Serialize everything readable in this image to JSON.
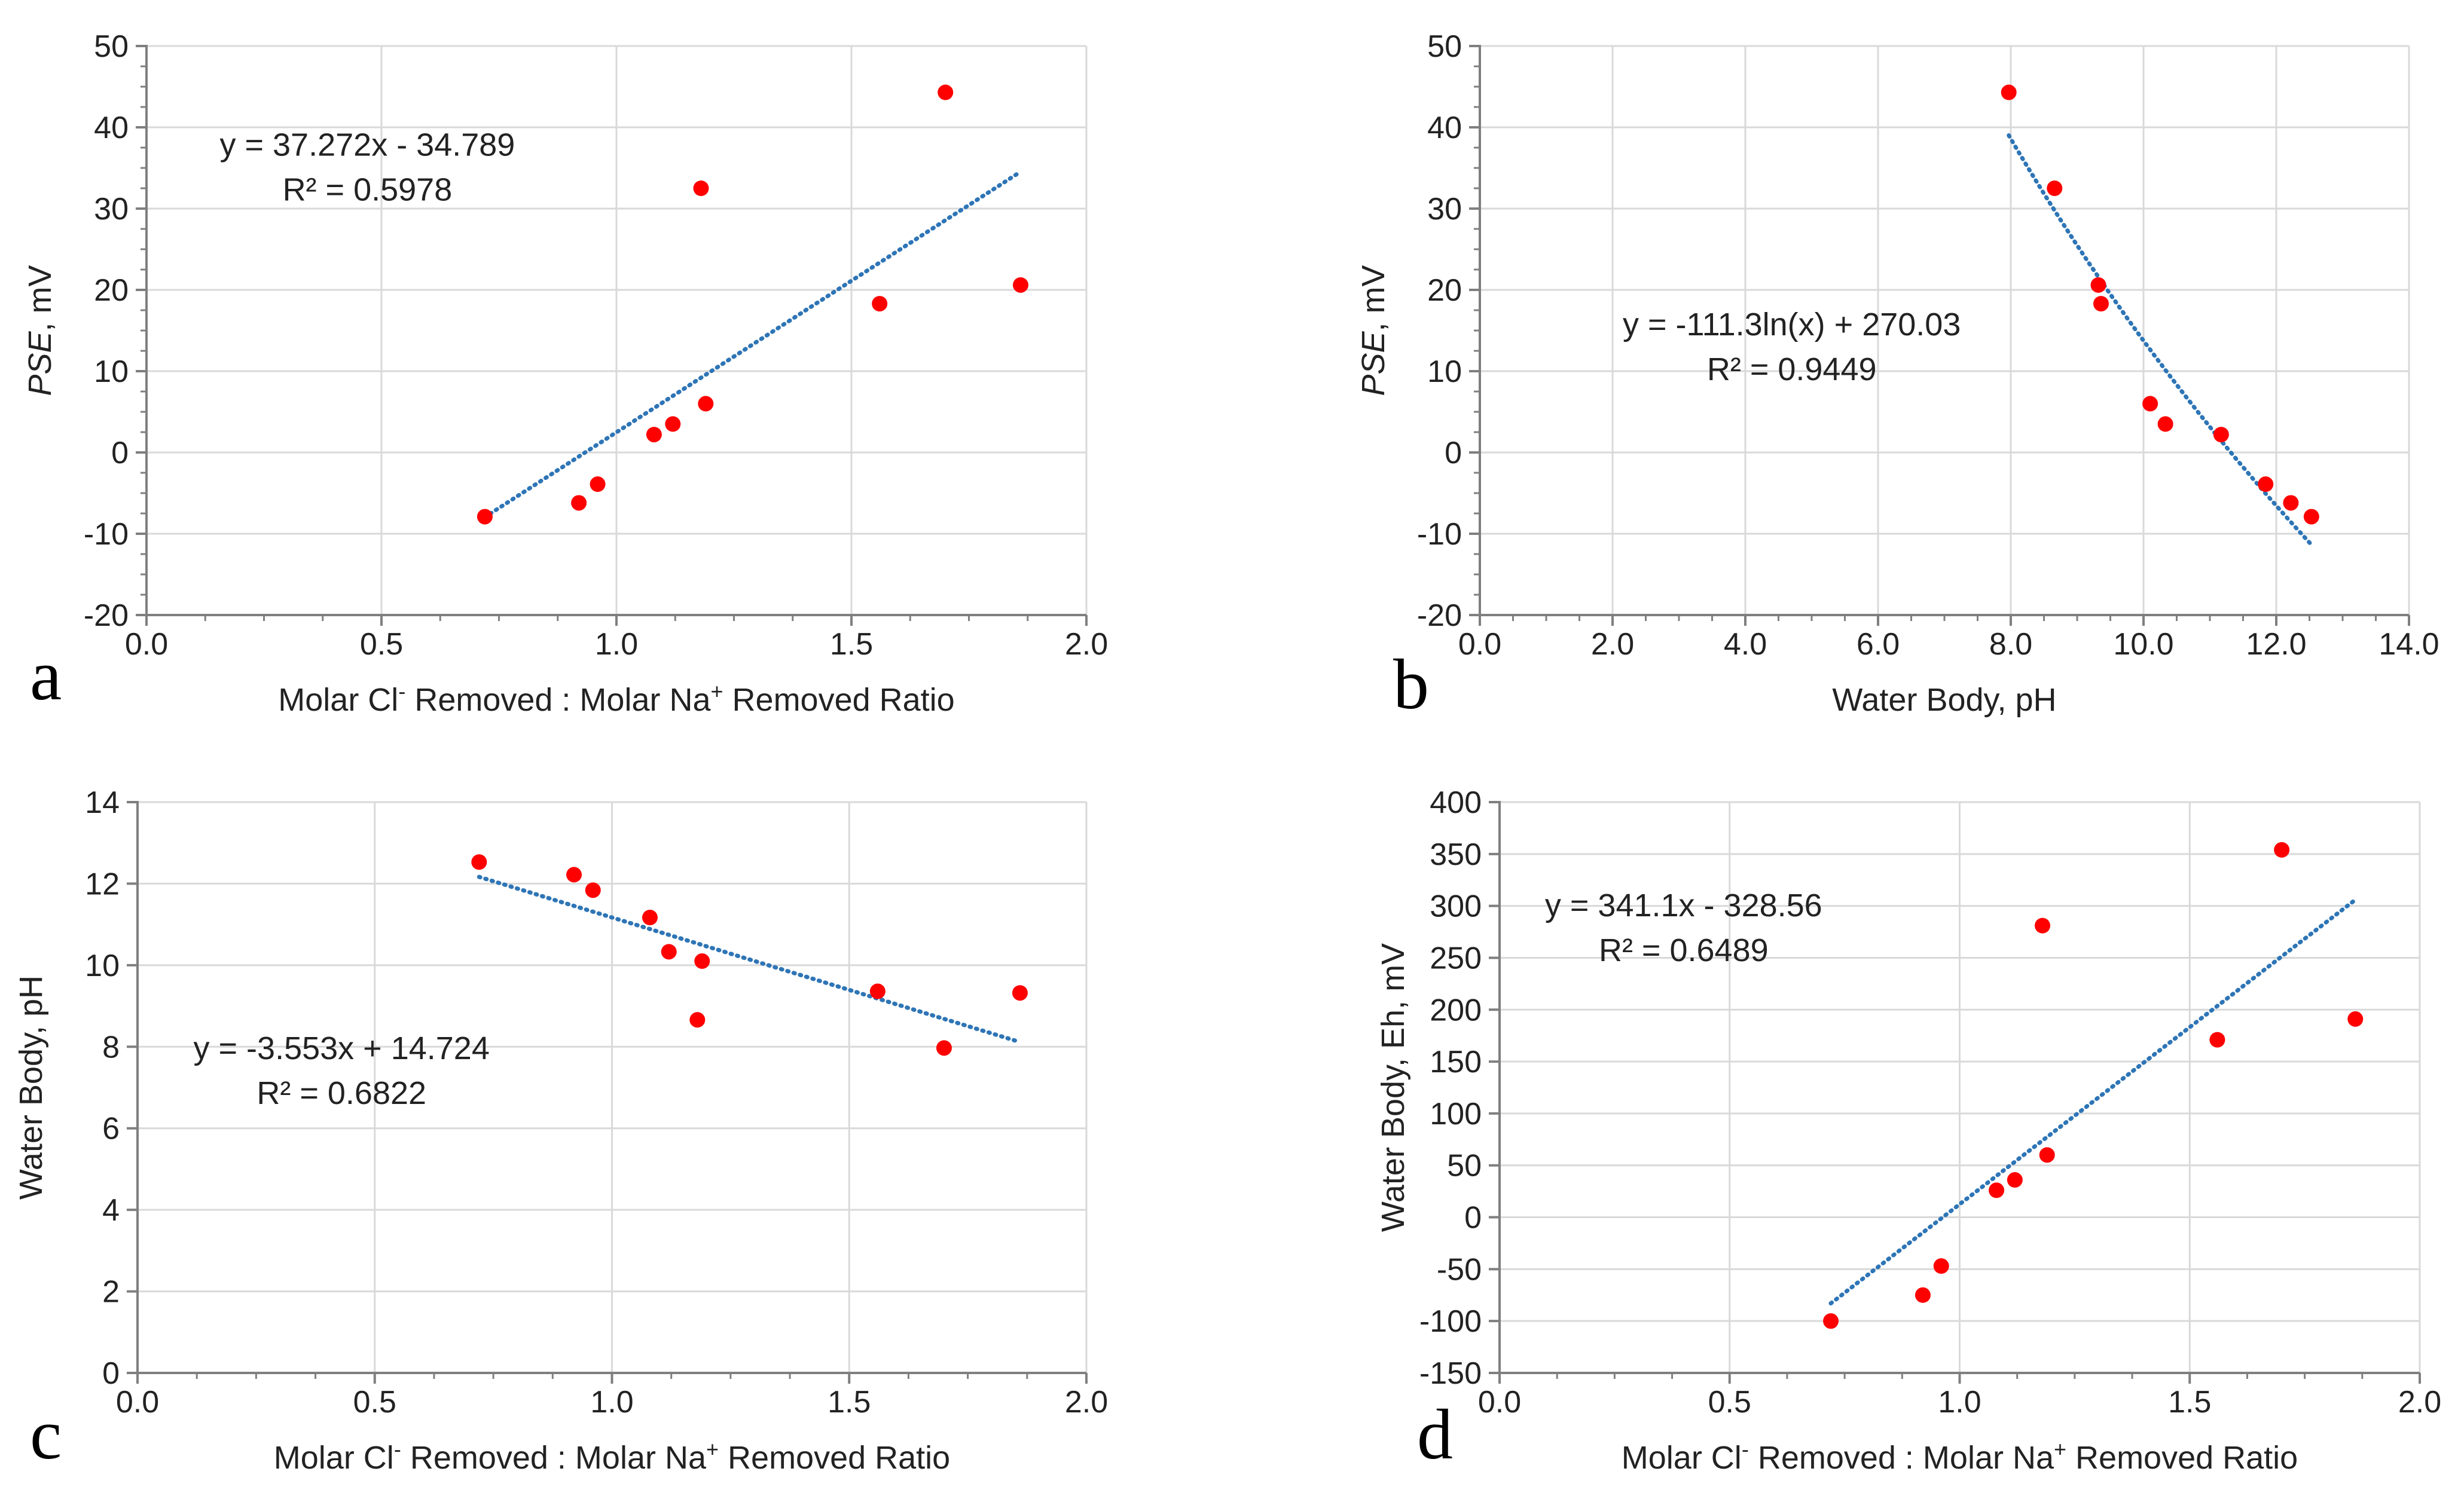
{
  "colors": {
    "point": "#ff0000",
    "trendline": "#2e75b6",
    "gridline": "#d9d9d9",
    "axis": "#7f7f7f",
    "text": "#222222"
  },
  "chart_data": [
    {
      "id": "a",
      "letter": "a",
      "type": "scatter",
      "title": "",
      "xlabel_parts": [
        "Molar Cl",
        "-",
        " Removed : Molar Na",
        "+",
        " Removed Ratio"
      ],
      "ylabel_parts": [
        {
          "text": "PSE",
          "italic": true
        },
        {
          "text": ", mV",
          "italic": false
        }
      ],
      "xlim": [
        0,
        2
      ],
      "ylim": [
        -20,
        50
      ],
      "x_major": 0.5,
      "y_major": 10,
      "x_minor_per_major": 4,
      "y_minor_per_major": 4,
      "xtick_decimals": 1,
      "ytick_decimals": 0,
      "grid": true,
      "points": [
        {
          "x": 0.72,
          "y": -7.9
        },
        {
          "x": 0.92,
          "y": -6.2
        },
        {
          "x": 0.96,
          "y": -3.9
        },
        {
          "x": 1.08,
          "y": 2.2
        },
        {
          "x": 1.12,
          "y": 3.5
        },
        {
          "x": 1.18,
          "y": 32.5
        },
        {
          "x": 1.19,
          "y": 6.0
        },
        {
          "x": 1.56,
          "y": 18.3
        },
        {
          "x": 1.7,
          "y": 44.3
        },
        {
          "x": 1.86,
          "y": 20.6
        }
      ],
      "trendline": {
        "kind": "linear",
        "a": 37.272,
        "b": -34.789,
        "xrange": [
          0.72,
          1.86
        ]
      },
      "equation": "y = 37.272x - 34.789",
      "r2": "R² = 0.5978",
      "equation_anchor": {
        "x": 0.47,
        "y": 36.5
      }
    },
    {
      "id": "b",
      "letter": "b",
      "type": "scatter",
      "title": "",
      "xlabel_parts": [
        "Water Body, pH"
      ],
      "ylabel_parts": [
        {
          "text": "PSE",
          "italic": true
        },
        {
          "text": ", mV",
          "italic": false
        }
      ],
      "xlim": [
        0,
        14
      ],
      "ylim": [
        -20,
        50
      ],
      "x_major": 2,
      "y_major": 10,
      "x_minor_per_major": 4,
      "y_minor_per_major": 4,
      "xtick_decimals": 1,
      "ytick_decimals": 0,
      "grid": true,
      "points": [
        {
          "x": 7.97,
          "y": 44.3
        },
        {
          "x": 8.66,
          "y": 32.5
        },
        {
          "x": 9.32,
          "y": 20.6
        },
        {
          "x": 9.36,
          "y": 18.3
        },
        {
          "x": 10.1,
          "y": 6.0
        },
        {
          "x": 10.33,
          "y": 3.5
        },
        {
          "x": 11.17,
          "y": 2.2
        },
        {
          "x": 11.84,
          "y": -3.9
        },
        {
          "x": 12.22,
          "y": -6.2
        },
        {
          "x": 12.53,
          "y": -7.9
        }
      ],
      "trendline": {
        "kind": "log",
        "a": -111.3,
        "b": 270.03,
        "xrange": [
          7.97,
          12.53
        ]
      },
      "equation": "y = -111.3ln(x) + 270.03",
      "r2": "R² = 0.9449",
      "equation_anchor": {
        "x": 4.7,
        "y": 14.4
      }
    },
    {
      "id": "c",
      "letter": "c",
      "type": "scatter",
      "title": "",
      "xlabel_parts": [
        "Molar Cl",
        "-",
        " Removed : Molar Na",
        "+",
        " Removed Ratio"
      ],
      "ylabel_parts": [
        {
          "text": "Water Body, pH",
          "italic": false
        }
      ],
      "xlim": [
        0,
        2
      ],
      "ylim": [
        0,
        14
      ],
      "x_major": 0.5,
      "y_major": 2,
      "x_minor_per_major": 4,
      "y_minor_per_major": 0,
      "xtick_decimals": 1,
      "ytick_decimals": 0,
      "grid": true,
      "points": [
        {
          "x": 0.72,
          "y": 12.53
        },
        {
          "x": 0.92,
          "y": 12.22
        },
        {
          "x": 0.96,
          "y": 11.84
        },
        {
          "x": 1.08,
          "y": 11.17
        },
        {
          "x": 1.12,
          "y": 10.33
        },
        {
          "x": 1.18,
          "y": 8.66
        },
        {
          "x": 1.19,
          "y": 10.1
        },
        {
          "x": 1.56,
          "y": 9.36
        },
        {
          "x": 1.7,
          "y": 7.97
        },
        {
          "x": 1.86,
          "y": 9.32
        }
      ],
      "trendline": {
        "kind": "linear",
        "a": -3.553,
        "b": 14.724,
        "xrange": [
          0.72,
          1.86
        ]
      },
      "equation": "y = -3.553x + 14.724",
      "r2": "R² = 0.6822",
      "equation_anchor": {
        "x": 0.43,
        "y": 7.7
      }
    },
    {
      "id": "d",
      "letter": "d",
      "type": "scatter",
      "title": "",
      "xlabel_parts": [
        "Molar Cl",
        "-",
        " Removed : Molar Na",
        "+",
        " Removed Ratio"
      ],
      "ylabel_parts": [
        {
          "text": "Water Body, Eh, mV",
          "italic": false
        }
      ],
      "xlim": [
        0,
        2
      ],
      "ylim": [
        -150,
        400
      ],
      "x_major": 0.5,
      "y_major": 50,
      "x_minor_per_major": 4,
      "y_minor_per_major": 0,
      "xtick_decimals": 1,
      "ytick_decimals": 0,
      "grid": true,
      "points": [
        {
          "x": 0.72,
          "y": -100
        },
        {
          "x": 0.92,
          "y": -75
        },
        {
          "x": 0.96,
          "y": -47
        },
        {
          "x": 1.08,
          "y": 26
        },
        {
          "x": 1.12,
          "y": 36
        },
        {
          "x": 1.18,
          "y": 281
        },
        {
          "x": 1.19,
          "y": 60
        },
        {
          "x": 1.56,
          "y": 171
        },
        {
          "x": 1.7,
          "y": 354
        },
        {
          "x": 1.86,
          "y": 191
        }
      ],
      "trendline": {
        "kind": "linear",
        "a": 341.1,
        "b": -328.56,
        "xrange": [
          0.72,
          1.86
        ]
      },
      "equation": "y = 341.1x - 328.56",
      "r2": "R² = 0.6489",
      "equation_anchor": {
        "x": 0.4,
        "y": 290
      }
    }
  ]
}
